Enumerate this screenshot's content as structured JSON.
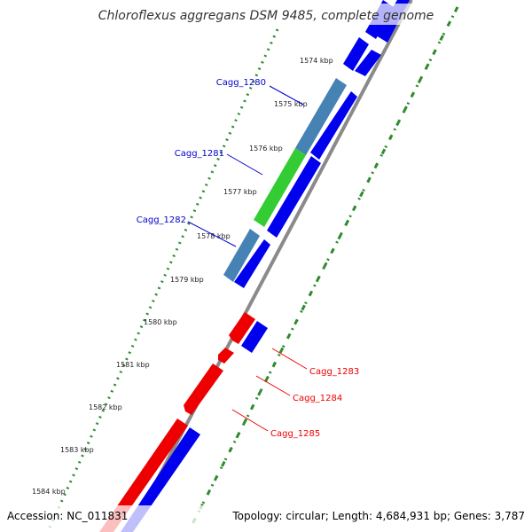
{
  "title": "Chloroflexus aggregans DSM 9485, complete genome",
  "footer": {
    "accession": "Accession: NC_011831",
    "info": "Topology: circular; Length: 4,684,931 bp; Genes: 3,787"
  },
  "colors": {
    "forward_cds": "#0000ee",
    "reverse_cds": "#ee0000",
    "steelblue_gene": "#4682b4",
    "green_gene": "#33cc33",
    "backbone": "#808080",
    "ticks": "#2e8b2e",
    "label_blue": "#0000cc",
    "label_red": "#ee0000"
  },
  "ticks": [
    "1574 kbp",
    "1575 kbp",
    "1576 kbp",
    "1577 kbp",
    "1578 kbp",
    "1579 kbp",
    "1580 kbp",
    "1581 kbp",
    "1582 kbp",
    "1583 kbp",
    "1584 kbp"
  ],
  "gene_labels": [
    {
      "name": "Cagg_1280",
      "color": "blue"
    },
    {
      "name": "Cagg_1281",
      "color": "blue"
    },
    {
      "name": "Cagg_1282",
      "color": "blue"
    },
    {
      "name": "Cagg_1283",
      "color": "red"
    },
    {
      "name": "Cagg_1284",
      "color": "red"
    },
    {
      "name": "Cagg_1285",
      "color": "red"
    }
  ]
}
